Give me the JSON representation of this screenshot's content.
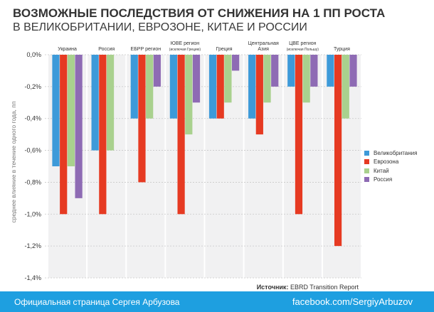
{
  "header": {
    "title": "ВОЗМОЖНЫЕ ПОСЛЕДСТВИЯ ОТ СНИЖЕНИЯ НА 1 ПП РОСТА",
    "subtitle": "В ВЕЛИКОБРИТАНИИ, ЕВРОЗОНЕ, КИТАЕ И РОССИИ"
  },
  "chart_data": {
    "type": "bar",
    "title": "ВОЗМОЖНЫЕ ПОСЛЕДСТВИЯ ОТ СНИЖЕНИЯ НА 1 ПП РОСТА В ВЕЛИКОБРИТАНИИ, ЕВРОЗОНЕ, КИТАЕ И РОССИИ",
    "ylabel": "среднее влияние в течение одного года, пп",
    "ylim": [
      -1.4,
      0
    ],
    "yticks": [
      "0,0%",
      "-0,2%",
      "-0,4%",
      "-0,6%",
      "-0,8%",
      "-1,0%",
      "-1,2%",
      "-1,4%"
    ],
    "categories": [
      {
        "name": "Украина",
        "sub": ""
      },
      {
        "name": "Россия",
        "sub": ""
      },
      {
        "name": "ЕБРР регион",
        "sub": ""
      },
      {
        "name": "ЮВЕ регион",
        "sub": "(исключая Грецию)"
      },
      {
        "name": "Греция",
        "sub": ""
      },
      {
        "name": "Центральная",
        "sub": "Азия"
      },
      {
        "name": "ЦВЕ регион",
        "sub": "(исключая Польшу)"
      },
      {
        "name": "Турция",
        "sub": ""
      }
    ],
    "series": [
      {
        "name": "Великобритания",
        "color": "#3d9ad9",
        "values": [
          -0.7,
          -0.6,
          -0.4,
          -0.4,
          -0.4,
          -0.4,
          -0.2,
          -0.2
        ]
      },
      {
        "name": "Еврозона",
        "color": "#e63a22",
        "values": [
          -1.0,
          -1.0,
          -0.8,
          -1.0,
          -0.4,
          -0.5,
          -1.0,
          -1.2
        ]
      },
      {
        "name": "Китай",
        "color": "#a9d18e",
        "values": [
          -0.7,
          -0.6,
          -0.4,
          -0.5,
          -0.3,
          -0.3,
          -0.3,
          -0.4
        ]
      },
      {
        "name": "Россия",
        "color": "#8e6bb4",
        "values": [
          -0.9,
          0.0,
          -0.2,
          -0.3,
          -0.1,
          -0.2,
          -0.2,
          -0.2
        ]
      }
    ]
  },
  "source": {
    "label": "Источник:",
    "text": "EBRD Transition Report"
  },
  "footer": {
    "left": "Официальная страница Сергея Арбузова",
    "right": "facebook.com/SergiyArbuzov"
  }
}
